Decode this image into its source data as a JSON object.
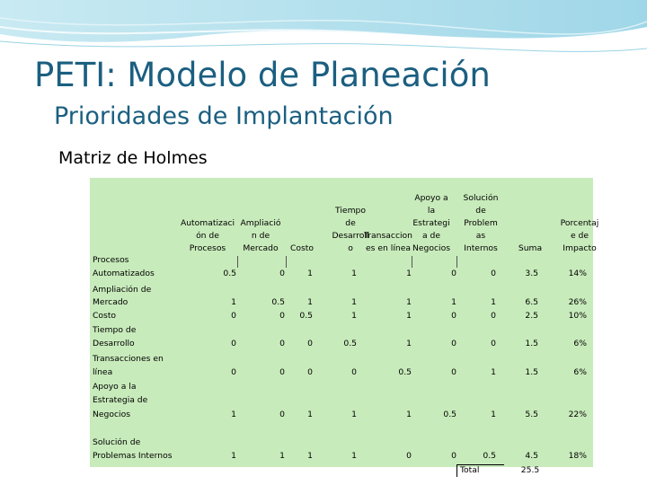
{
  "slide": {
    "title": "PETI: Modelo de Planeación",
    "subtitle": "Prioridades de Implantación",
    "section": "Matriz de Holmes"
  },
  "matrix": {
    "col_headers": [
      [
        "Automatizaci",
        "ón de",
        "Procesos"
      ],
      [
        "Ampliació",
        "n de",
        "Mercado"
      ],
      [
        "Costo"
      ],
      [
        "Tiempo",
        "de",
        "Desarroll",
        "o"
      ],
      [
        "Transaccion",
        "es en línea"
      ],
      [
        "Apoyo a",
        "la",
        "Estrategi",
        "a de",
        "Negocios"
      ],
      [
        "Solución",
        "de",
        "Problem",
        "as",
        "Internos"
      ],
      [
        "Suma"
      ],
      [
        "Porcentaj",
        "e de",
        "Impacto"
      ]
    ],
    "rows": [
      {
        "label": [
          "Procesos",
          "Automatizados"
        ],
        "values": [
          "0.5",
          "0",
          "1",
          "1",
          "1",
          "0",
          "0",
          "3.5",
          "14%"
        ]
      },
      {
        "label": [
          "Ampliación de",
          "Mercado"
        ],
        "values": [
          "1",
          "0.5",
          "1",
          "1",
          "1",
          "1",
          "1",
          "6.5",
          "26%"
        ]
      },
      {
        "label": [
          "Costo"
        ],
        "values": [
          "0",
          "0",
          "0.5",
          "1",
          "1",
          "0",
          "0",
          "2.5",
          "10%"
        ]
      },
      {
        "label": [
          "Tiempo de",
          "Desarrollo"
        ],
        "values": [
          "0",
          "0",
          "0",
          "0.5",
          "1",
          "0",
          "0",
          "1.5",
          "6%"
        ]
      },
      {
        "label": [
          "Transacciones en",
          "línea"
        ],
        "values": [
          "0",
          "0",
          "0",
          "0",
          "0.5",
          "0",
          "1",
          "1.5",
          "6%"
        ]
      },
      {
        "label": [
          "Apoyo a la",
          "Estrategia de",
          "Negocios"
        ],
        "values": [
          "1",
          "0",
          "1",
          "1",
          "1",
          "0.5",
          "1",
          "5.5",
          "22%"
        ]
      },
      {
        "label": [
          "Solución de",
          "Problemas Internos"
        ],
        "values": [
          "1",
          "1",
          "1",
          "1",
          "0",
          "0",
          "0.5",
          "4.5",
          "18%"
        ]
      }
    ],
    "total_label": "Total",
    "total_value": "25.5"
  }
}
